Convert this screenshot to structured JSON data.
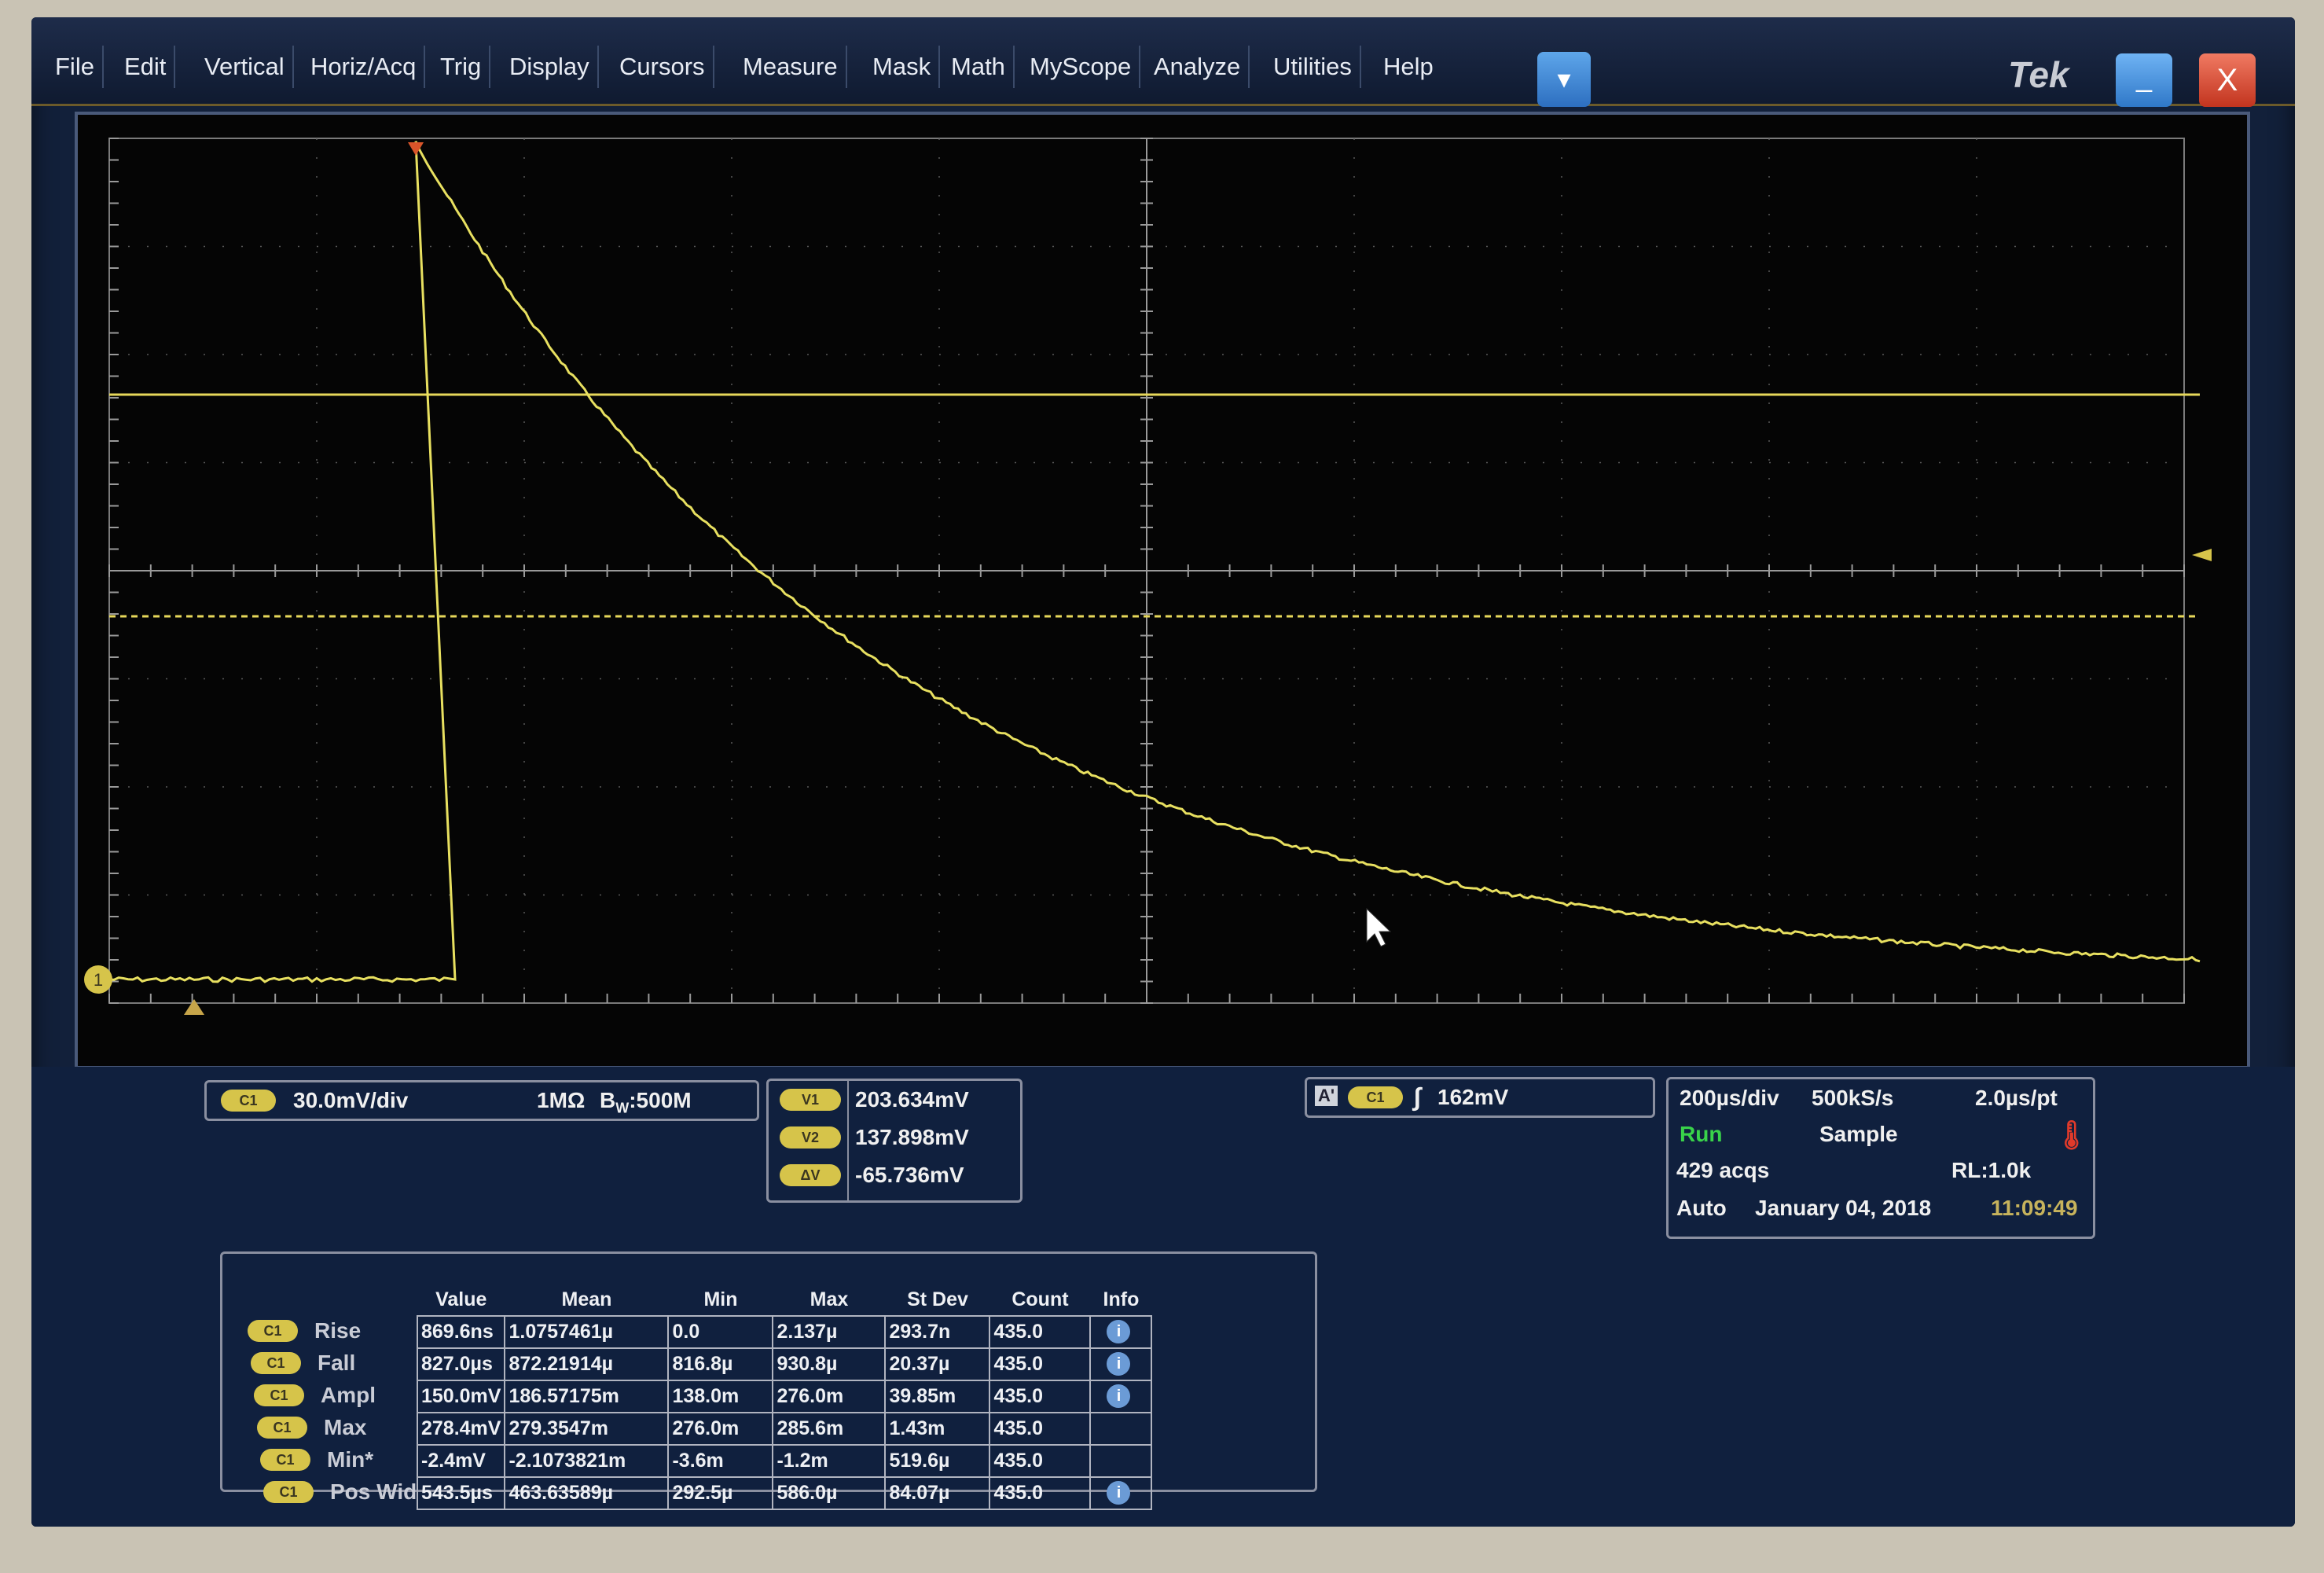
{
  "menu": {
    "items": [
      "File",
      "Edit",
      "Vertical",
      "Horiz/Acq",
      "Trig",
      "Display",
      "Cursors",
      "Measure",
      "Mask",
      "Math",
      "MyScope",
      "Analyze",
      "Utilities",
      "Help"
    ],
    "dropdown_icon": "chevron-down-icon"
  },
  "brand": "Tek",
  "window": {
    "minimize_icon": "minimize-icon",
    "close_icon": "close-icon",
    "close_glyph": "X"
  },
  "channel": {
    "chip": "C1",
    "scale": "30.0mV/div",
    "impedance": "1MΩ",
    "bandwidth_prefix": "B",
    "bandwidth_sub": "W",
    "bandwidth_value": ":500M"
  },
  "cursors": {
    "v1_label": "V1",
    "v1": "203.634mV",
    "v2_label": "V2",
    "v2": "137.898mV",
    "dv_label": "ΔV",
    "dv": "-65.736mV"
  },
  "trigger": {
    "mode_label": "A'",
    "source": "C1",
    "slope_icon": "rising-edge-icon",
    "level": "162mV"
  },
  "acquisition": {
    "time_div": "200µs/div",
    "sample_rate": "500kS/s",
    "resolution": "2.0µs/pt",
    "state": "Run",
    "mode": "Sample",
    "acqs": "429 acqs",
    "record_length": "RL:1.0k",
    "trigger_mode": "Auto",
    "date": "January 04, 2018",
    "time": "11:09:49",
    "status_icon": "thermometer-icon"
  },
  "channel_marker": "1",
  "measurements": {
    "headers": [
      "Value",
      "Mean",
      "Min",
      "Max",
      "St Dev",
      "Count",
      "Info"
    ],
    "rows": [
      {
        "chip": "C1",
        "name": "Rise",
        "value": "869.6ns",
        "mean": "1.0757461µ",
        "min": "0.0",
        "max": "2.137µ",
        "stdev": "293.7n",
        "count": "435.0",
        "info": true
      },
      {
        "chip": "C1",
        "name": "Fall",
        "value": "827.0µs",
        "mean": "872.21914µ",
        "min": "816.8µ",
        "max": "930.8µ",
        "stdev": "20.37µ",
        "count": "435.0",
        "info": true
      },
      {
        "chip": "C1",
        "name": "Ampl",
        "value": "150.0mV",
        "mean": "186.57175m",
        "min": "138.0m",
        "max": "276.0m",
        "stdev": "39.85m",
        "count": "435.0",
        "info": true
      },
      {
        "chip": "C1",
        "name": "Max",
        "value": "278.4mV",
        "mean": "279.3547m",
        "min": "276.0m",
        "max": "285.6m",
        "stdev": "1.43m",
        "count": "435.0",
        "info": false
      },
      {
        "chip": "C1",
        "name": "Min*",
        "value": "-2.4mV",
        "mean": "-2.1073821m",
        "min": "-3.6m",
        "max": "-1.2m",
        "stdev": "519.6µ",
        "count": "435.0",
        "info": false
      },
      {
        "chip": "C1",
        "name": "Pos Wid",
        "value": "543.5µs",
        "mean": "463.63589µ",
        "min": "292.5µ",
        "max": "586.0µ",
        "stdev": "84.07µ",
        "count": "435.0",
        "info": true
      }
    ]
  },
  "colors": {
    "trace": "#e8e060",
    "cursor": "#e6d85a",
    "background": "#050505",
    "grid": "#8c8c8c",
    "run": "#39d24a",
    "chip": "#d6c44a"
  }
}
